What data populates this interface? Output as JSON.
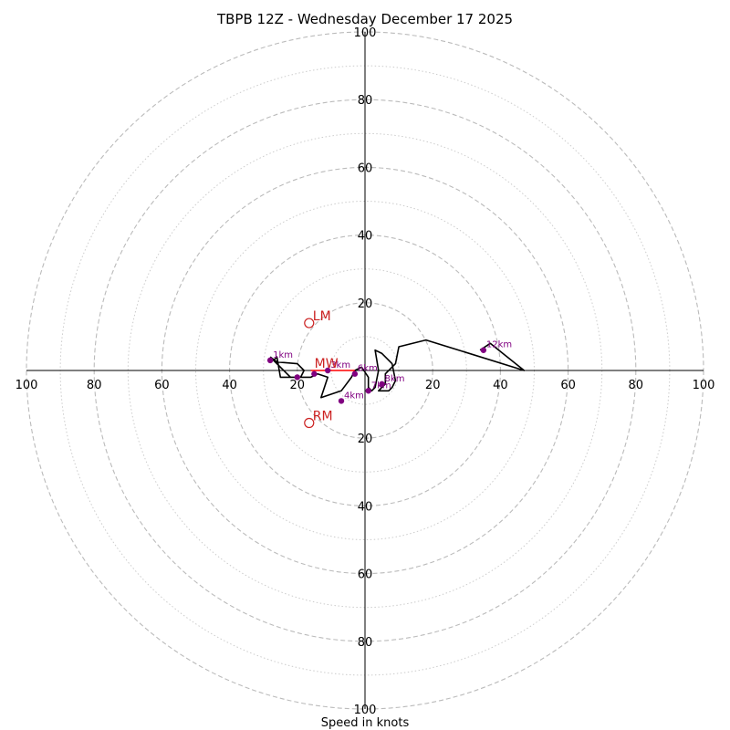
{
  "chart_data": {
    "type": "hodograph",
    "title": "TBPB 12Z - Wednesday December 17 2025",
    "xlabel": "Speed in knots",
    "rings_major": [
      20,
      40,
      60,
      80,
      100
    ],
    "rings_minor": [
      10,
      30,
      50,
      70,
      90
    ],
    "tick_labels": {
      "top": [
        "20",
        "40",
        "60",
        "80",
        "100"
      ],
      "bottom": [
        "20",
        "40",
        "60",
        "80",
        "100"
      ],
      "left": [
        "20",
        "40",
        "60",
        "80",
        "100"
      ],
      "right": [
        "20",
        "40",
        "60",
        "80",
        "100"
      ]
    },
    "range": [
      -100,
      100
    ],
    "trace_color": "#000000",
    "marker_color": "#800080",
    "motion_color": "#cc2222",
    "hodograph_trace": [
      [
        -28,
        4
      ],
      [
        -26,
        2.5
      ],
      [
        -20,
        2
      ],
      [
        -18,
        0
      ],
      [
        -19,
        -2
      ],
      [
        -25,
        -2
      ],
      [
        -26,
        4
      ],
      [
        -27,
        3
      ],
      [
        -22,
        -2
      ],
      [
        -16,
        -2
      ],
      [
        -14,
        -1
      ],
      [
        -11,
        -2
      ],
      [
        -13,
        -8
      ],
      [
        -7,
        -6
      ],
      [
        -4,
        -2
      ],
      [
        -3,
        0
      ],
      [
        -1,
        1
      ],
      [
        1,
        -2
      ],
      [
        1,
        -5
      ],
      [
        2,
        -6
      ],
      [
        3,
        -5
      ],
      [
        4,
        0
      ],
      [
        3,
        6
      ],
      [
        5,
        5
      ],
      [
        8,
        2
      ],
      [
        9,
        -3
      ],
      [
        8,
        -5
      ],
      [
        7,
        -6
      ],
      [
        4,
        -6
      ],
      [
        6,
        -4
      ],
      [
        6,
        -1
      ],
      [
        9,
        2
      ],
      [
        10,
        7
      ],
      [
        18,
        9
      ],
      [
        47,
        0
      ],
      [
        37,
        8
      ],
      [
        34,
        6
      ]
    ],
    "height_markers": [
      {
        "label": "1km",
        "u": -28,
        "v": 3
      },
      {
        "label": "3km",
        "u": -11,
        "v": 0
      },
      {
        "label": "4km",
        "u": -7,
        "v": -9
      },
      {
        "label": "6km",
        "u": -3,
        "v": -1
      },
      {
        "label": "7km",
        "u": 1,
        "v": -6
      },
      {
        "label": "8km",
        "u": 5,
        "v": -4
      },
      {
        "label": "12km",
        "u": 35,
        "v": 6
      },
      {
        "label": "",
        "u": -20,
        "v": -2
      },
      {
        "label": "",
        "u": -15,
        "v": -1
      }
    ],
    "storm_motions": [
      {
        "label": "LM",
        "u": -16.5,
        "v": 14
      },
      {
        "label": "MW",
        "u": -16,
        "v": 0
      },
      {
        "label": "RM",
        "u": -16.5,
        "v": -15.5
      }
    ],
    "red_segment": [
      [
        -16,
        0
      ],
      [
        -3,
        0
      ]
    ]
  }
}
